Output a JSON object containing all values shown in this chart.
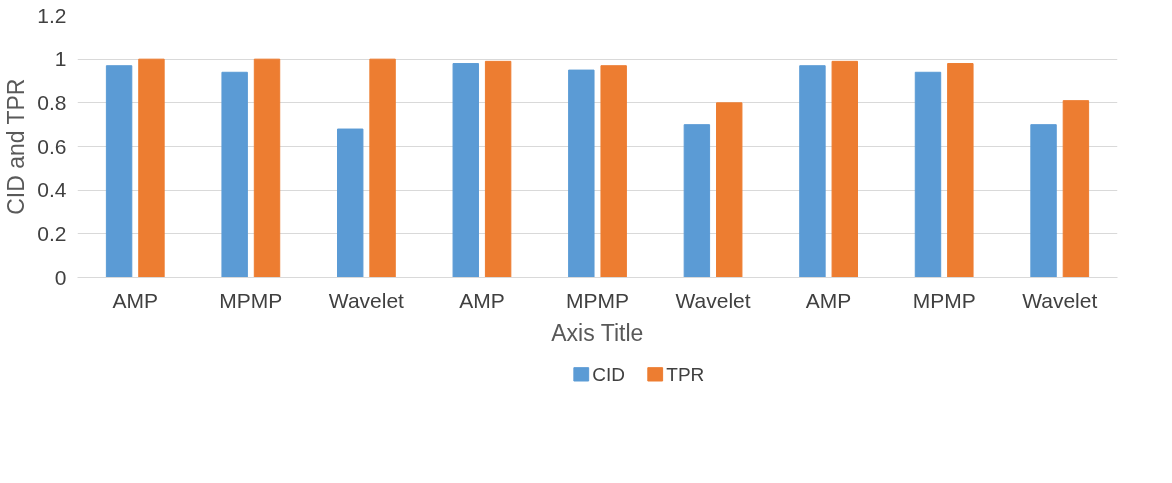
{
  "chart_data": {
    "type": "bar",
    "xlabel": "Axis Title",
    "ylabel": "CID and TPR",
    "categories": [
      "AMP",
      "MPMP",
      "Wavelet",
      "AMP",
      "MPMP",
      "Wavelet",
      "AMP",
      "MPMP",
      "Wavelet"
    ],
    "series": [
      {
        "name": "CID",
        "color": "#5b9bd5",
        "values": [
          0.97,
          0.94,
          0.68,
          0.98,
          0.95,
          0.7,
          0.97,
          0.94,
          0.7
        ]
      },
      {
        "name": "TPR",
        "color": "#ed7d31",
        "values": [
          1.0,
          1.0,
          1.0,
          0.99,
          0.97,
          0.8,
          0.99,
          0.98,
          0.81
        ]
      }
    ],
    "ylim": [
      0,
      1.2
    ],
    "yticks": [
      0,
      0.2,
      0.4,
      0.6,
      0.8,
      1,
      1.2
    ],
    "grid": "y",
    "legend": "bottom"
  }
}
